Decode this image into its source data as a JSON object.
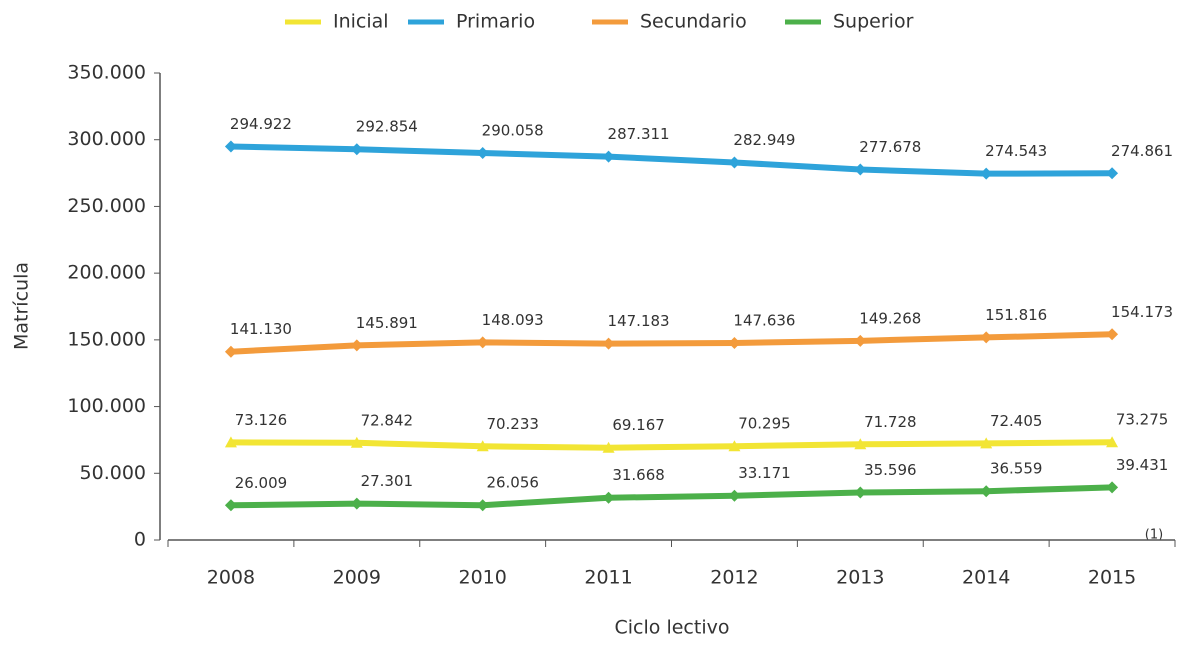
{
  "chart_data": {
    "type": "line",
    "x_label": "Ciclo lectivo",
    "y_label": "Matrícula",
    "annotation": "(1)",
    "categories": [
      "2008",
      "2009",
      "2010",
      "2011",
      "2012",
      "2013",
      "2014",
      "2015"
    ],
    "series": [
      {
        "name": "Inicial",
        "color": "#f2e534",
        "marker": "triangle",
        "values": [
          73126,
          72842,
          70233,
          69167,
          70295,
          71728,
          72405,
          73275
        ],
        "value_labels": [
          "73.126",
          "72.842",
          "70.233",
          "69.167",
          "70.295",
          "71.728",
          "72.405",
          "73.275"
        ]
      },
      {
        "name": "Primario",
        "color": "#2ea3da",
        "marker": "diamond",
        "values": [
          294922,
          292854,
          290058,
          287311,
          282949,
          277678,
          274543,
          274861
        ],
        "value_labels": [
          "294.922",
          "292.854",
          "290.058",
          "287.311",
          "282.949",
          "277.678",
          "274.543",
          "274.861"
        ]
      },
      {
        "name": "Secundario",
        "color": "#f39b3c",
        "marker": "diamond",
        "values": [
          141130,
          145891,
          148093,
          147183,
          147636,
          149268,
          151816,
          154173
        ],
        "value_labels": [
          "141.130",
          "145.891",
          "148.093",
          "147.183",
          "147.636",
          "149.268",
          "151.816",
          "154.173"
        ]
      },
      {
        "name": "Superior",
        "color": "#4cb04a",
        "marker": "diamond",
        "values": [
          26009,
          27301,
          26056,
          31668,
          33171,
          35596,
          36559,
          39431
        ],
        "value_labels": [
          "26.009",
          "27.301",
          "26.056",
          "31.668",
          "33.171",
          "35.596",
          "36.559",
          "39.431"
        ]
      }
    ],
    "ylim": [
      0,
      350000
    ],
    "yticks": [
      0,
      {
        "value": 50000,
        "label": "50.000"
      },
      {
        "value": 100000,
        "label": "100.000"
      },
      {
        "value": 150000,
        "label": "150.000"
      },
      {
        "value": 200000,
        "label": "200.000"
      },
      {
        "value": 250000,
        "label": "250.000"
      },
      {
        "value": 300000,
        "label": "300.000"
      },
      {
        "value": 350000,
        "label": "350.000"
      }
    ],
    "grid": false,
    "legend": "top"
  }
}
